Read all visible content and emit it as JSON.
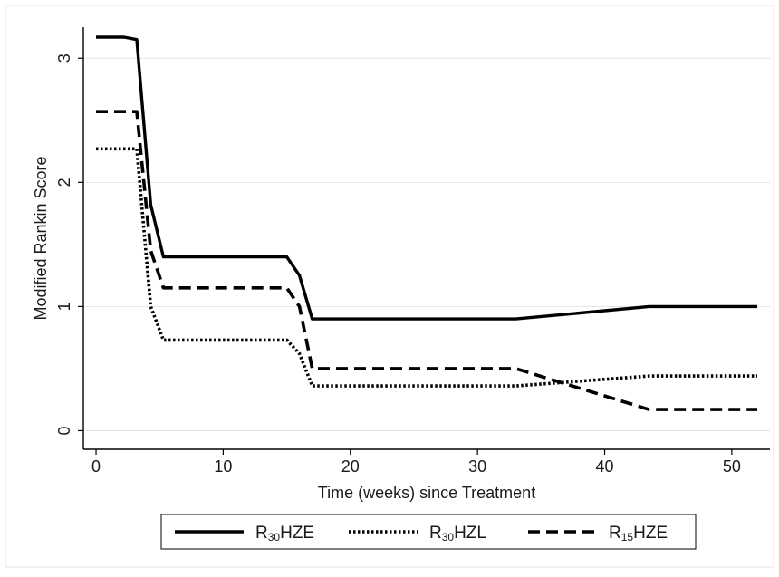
{
  "chart_data": {
    "type": "line",
    "title": "",
    "xlabel": "Time (weeks) since Treatment",
    "ylabel": "Modified Rankin Score",
    "xlim": [
      -1,
      53
    ],
    "ylim": [
      -0.15,
      3.25
    ],
    "xticks": [
      0,
      10,
      20,
      30,
      40,
      50
    ],
    "yticks": [
      0,
      1,
      2,
      3
    ],
    "grid": "horizontal",
    "legend_position": "bottom",
    "series": [
      {
        "name": "R30HZE",
        "name_base": "R",
        "name_sub": "30",
        "name_rest": "HZE",
        "style": "solid",
        "color": "#000000",
        "x": [
          0,
          2.2,
          3.2,
          4.3,
          5.3,
          15,
          16,
          17,
          33,
          43.5,
          52
        ],
        "y": [
          3.17,
          3.17,
          3.15,
          1.82,
          1.4,
          1.4,
          1.25,
          0.9,
          0.9,
          1.0,
          1.0
        ]
      },
      {
        "name": "R30HZL",
        "name_base": "R",
        "name_sub": "30",
        "name_rest": "HZL",
        "style": "dotted",
        "color": "#000000",
        "x": [
          0,
          3.2,
          4.3,
          5.3,
          15,
          16,
          17,
          33,
          43.5,
          52
        ],
        "y": [
          2.27,
          2.27,
          1.0,
          0.73,
          0.73,
          0.62,
          0.36,
          0.36,
          0.44,
          0.44
        ]
      },
      {
        "name": "R15HZE",
        "name_base": "R",
        "name_sub": "15",
        "name_rest": "HZE",
        "style": "dashed",
        "color": "#000000",
        "x": [
          0,
          3.2,
          4.3,
          5.3,
          15,
          16,
          17,
          33,
          43.5,
          52
        ],
        "y": [
          2.57,
          2.57,
          1.45,
          1.15,
          1.15,
          1.0,
          0.5,
          0.5,
          0.17,
          0.17
        ]
      }
    ]
  }
}
